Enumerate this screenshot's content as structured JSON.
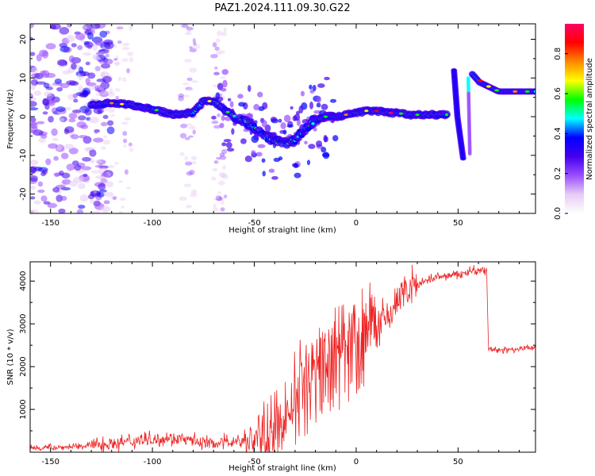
{
  "chart_data": [
    {
      "type": "heatmap",
      "title": "PAZ1.2024.111.09.30.G22",
      "xlabel": "Height of straight line (km)",
      "ylabel": "Frequency (Hz)",
      "xlim": [
        -160,
        88
      ],
      "ylim": [
        -25,
        24
      ],
      "xticks": [
        -150,
        -100,
        -50,
        0,
        50
      ],
      "yticks": [
        -20,
        -10,
        0,
        10,
        20
      ],
      "ridge": {
        "x": [
          -130,
          -120,
          -110,
          -100,
          -90,
          -80,
          -75,
          -70,
          -65,
          -60,
          -55,
          -50,
          -45,
          -40,
          -35,
          -30,
          -25,
          -20,
          -15,
          -10,
          -5,
          0,
          5,
          10,
          15,
          20,
          25,
          30,
          35,
          40,
          45
        ],
        "y": [
          3,
          3.5,
          3,
          2,
          0.5,
          1,
          4,
          4,
          2,
          0,
          -1,
          -3,
          -5,
          -6,
          -7,
          -6,
          -3,
          -1,
          0,
          0,
          0.5,
          1,
          1.5,
          1.5,
          1,
          1,
          0.5,
          0.5,
          0.5,
          0.5,
          0.5
        ]
      },
      "colorbar": {
        "label": "Normalized spectral amplitude",
        "range": [
          0,
          0.95
        ],
        "ticks": [
          "0.0",
          "0.2",
          "0.4",
          "0.6",
          "0.8"
        ],
        "stops": [
          "#ffffff",
          "#e6ccf5",
          "#9b4dff",
          "#4400ee",
          "#0000ff",
          "#00ffff",
          "#00ff00",
          "#ffff00",
          "#ff8800",
          "#ff0000",
          "#ff0066"
        ]
      }
    },
    {
      "type": "line",
      "title": "",
      "xlabel": "Height of straight line (km)",
      "ylabel": "SNR (10 * v/v)",
      "xlim": [
        -160,
        88
      ],
      "ylim": [
        0,
        4450
      ],
      "xticks": [
        -150,
        -100,
        -50,
        0,
        50
      ],
      "yticks": [
        1000,
        2000,
        3000,
        4000
      ],
      "color": "#ee2222",
      "series": [
        {
          "x": [
            -160,
            -140,
            -120,
            -100,
            -90,
            -80,
            -70,
            -60,
            -52,
            -45,
            -40,
            -35,
            -30,
            -25,
            -20,
            -15,
            -10,
            -5,
            0,
            5,
            10,
            15,
            20,
            25,
            30,
            40,
            50,
            55,
            60,
            64,
            65,
            70,
            80,
            88
          ],
          "y": [
            100,
            120,
            200,
            300,
            350,
            250,
            200,
            250,
            300,
            350,
            450,
            800,
            1200,
            1700,
            2000,
            2400,
            2400,
            2600,
            2800,
            3000,
            3000,
            3100,
            3500,
            3800,
            3900,
            4100,
            4150,
            4200,
            4250,
            4250,
            2400,
            2380,
            2420,
            2450
          ]
        }
      ]
    }
  ]
}
